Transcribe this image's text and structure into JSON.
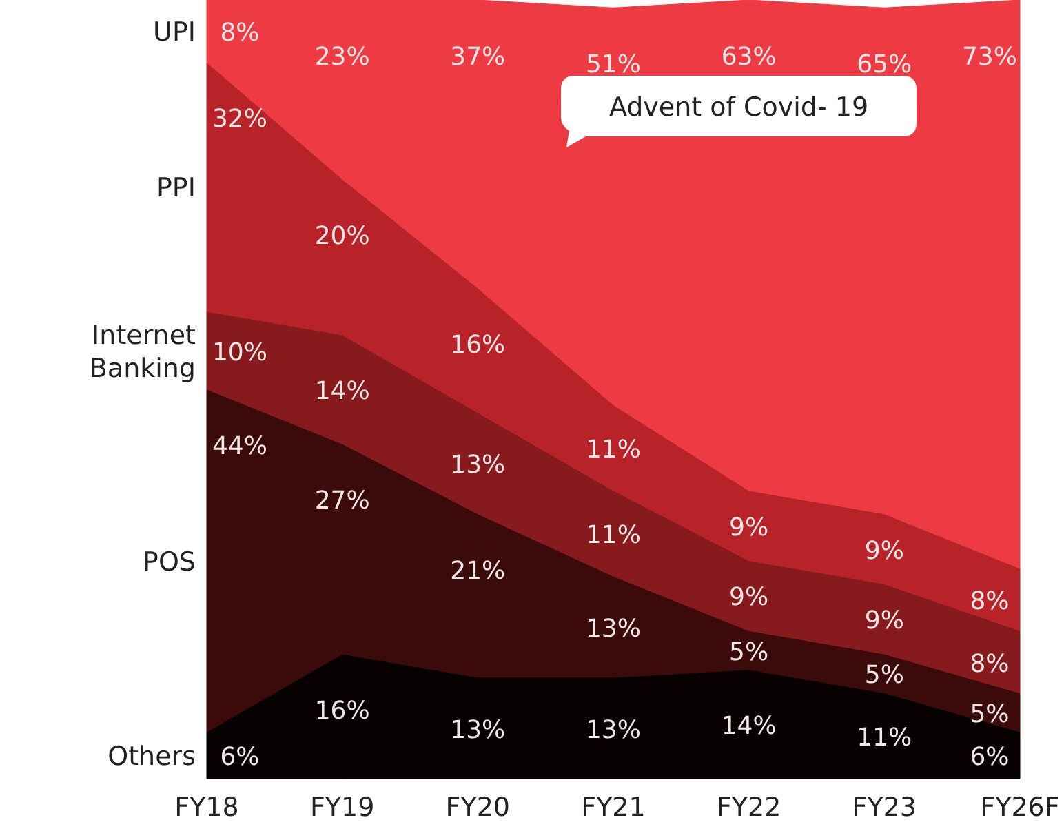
{
  "chart_data": {
    "type": "area",
    "stacked": true,
    "categories": [
      "FY18",
      "FY19",
      "FY20",
      "FY21",
      "FY22",
      "FY23",
      "FY26F"
    ],
    "series": [
      {
        "name": "Others",
        "color": "#070101",
        "values": [
          6,
          16,
          13,
          13,
          14,
          11,
          6
        ],
        "value_labels": [
          "6%",
          "16%",
          "13%",
          "13%",
          "14%",
          "11%",
          "6%"
        ]
      },
      {
        "name": "POS",
        "color": "#3b0a0b",
        "values": [
          44,
          27,
          21,
          13,
          5,
          5,
          5
        ],
        "value_labels": [
          "44%",
          "27%",
          "21%",
          "13%",
          "5%",
          "5%",
          "5%"
        ]
      },
      {
        "name": "Internet Banking",
        "color": "#861a1d",
        "values": [
          10,
          14,
          13,
          11,
          9,
          9,
          8
        ],
        "value_labels": [
          "10%",
          "14%",
          "13%",
          "11%",
          "9%",
          "9%",
          "8%"
        ]
      },
      {
        "name": "PPI",
        "color": "#b82329",
        "values": [
          32,
          20,
          16,
          11,
          9,
          9,
          8
        ],
        "value_labels": [
          "32%",
          "20%",
          "16%",
          "11%",
          "9%",
          "9%",
          "8%"
        ]
      },
      {
        "name": "UPI",
        "color": "#ee3a43",
        "values": [
          8,
          23,
          37,
          51,
          63,
          65,
          73
        ],
        "value_labels": [
          "8%",
          "23%",
          "37%",
          "51%",
          "63%",
          "65%",
          "73%"
        ]
      }
    ],
    "annotations": [
      "Advent of Covid- 19"
    ]
  }
}
